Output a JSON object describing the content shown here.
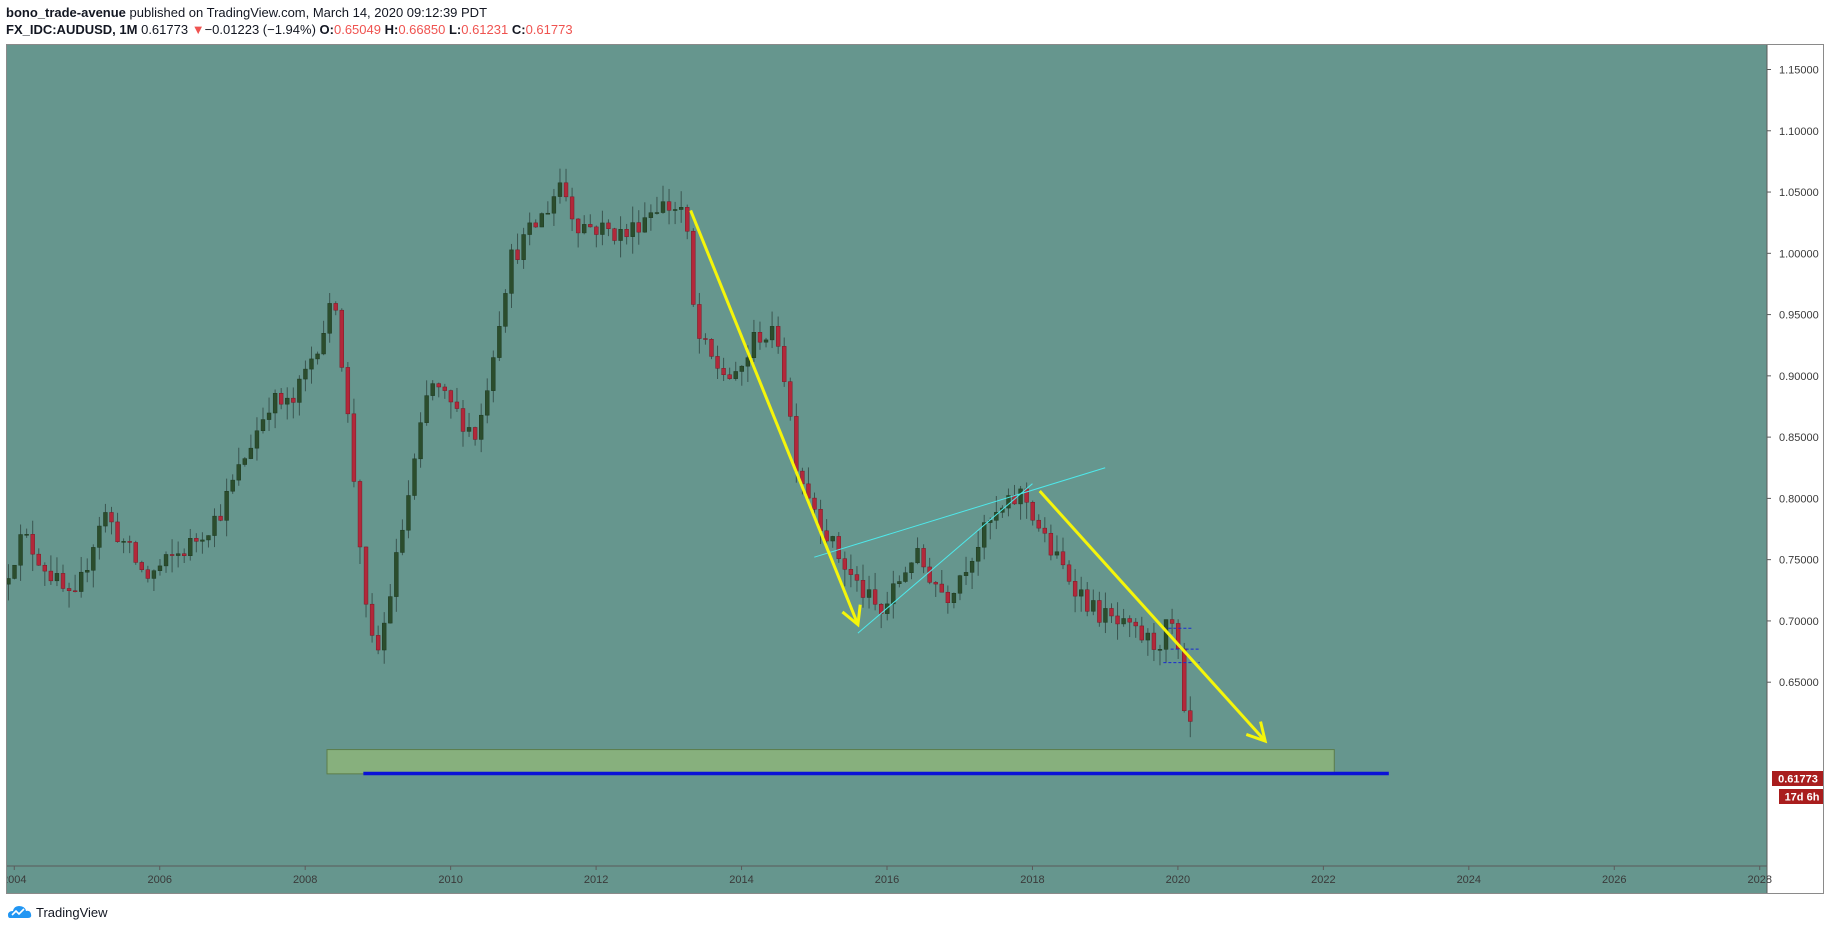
{
  "header": {
    "author": "bono_trade-avenue",
    "published": " published on TradingView.com, March 14, 2020 09:12:39 PDT",
    "symbol": "FX_IDC:AUDUSD, 1M",
    "last": "0.61773",
    "change": "−0.01223 (−1.94%)",
    "change_arrow": "▼",
    "o_label": "O:",
    "o_value": "0.65049",
    "h_label": "H:",
    "h_value": "0.66850",
    "l_label": "L:",
    "l_value": "0.61231",
    "c_label": "C:",
    "c_value": "0.61773"
  },
  "footer": {
    "brand": "TradingView",
    "logo": "tradingview-cloud-icon"
  },
  "colors": {
    "background": "#66968e",
    "up_body": "#2b4d2d",
    "down_body": "#b2283a",
    "wick": "#3a5550",
    "price_label": "#a91d1d",
    "zone": "#8db57a",
    "support_line": "#0a12d6",
    "arrows": "#f5f50a",
    "channel": "#4ee8ea",
    "axis_text": "#3a3a3a"
  },
  "chart_data": {
    "type": "candlestick",
    "symbol": "FX_IDC:AUDUSD",
    "interval": "1M",
    "x_range": [
      2003.9,
      2028.1
    ],
    "y_range": [
      0.5,
      1.17
    ],
    "x_ticks": [
      "2004",
      "2006",
      "2008",
      "2010",
      "2012",
      "2014",
      "2016",
      "2018",
      "2020",
      "2022",
      "2024",
      "2026",
      "2028"
    ],
    "y_ticks": [
      "1.15000",
      "1.10000",
      "1.05000",
      "1.00000",
      "0.95000",
      "0.90000",
      "0.85000",
      "0.80000",
      "0.75000",
      "0.70000",
      "0.65000"
    ],
    "last_price_label": "0.61773",
    "countdown_label": "17d 6h",
    "anchors": [
      [
        2003.92,
        0.73
      ],
      [
        2004.2,
        0.77
      ],
      [
        2004.9,
        0.712
      ],
      [
        2005.3,
        0.79
      ],
      [
        2005.9,
        0.735
      ],
      [
        2006.5,
        0.762
      ],
      [
        2006.9,
        0.787
      ],
      [
        2007.6,
        0.88
      ],
      [
        2007.9,
        0.875
      ],
      [
        2008.5,
        0.963
      ],
      [
        2008.8,
        0.79
      ],
      [
        2008.95,
        0.685
      ],
      [
        2009.1,
        0.675
      ],
      [
        2009.8,
        0.895
      ],
      [
        2010.45,
        0.85
      ],
      [
        2010.9,
        0.995
      ],
      [
        2011.4,
        1.035
      ],
      [
        2011.6,
        1.06
      ],
      [
        2011.8,
        1.025
      ],
      [
        2012.5,
        1.015
      ],
      [
        2012.9,
        1.04
      ],
      [
        2013.3,
        1.036
      ],
      [
        2013.45,
        0.935
      ],
      [
        2013.7,
        0.91
      ],
      [
        2014.0,
        0.895
      ],
      [
        2014.3,
        0.935
      ],
      [
        2014.6,
        0.93
      ],
      [
        2014.85,
        0.825
      ],
      [
        2015.3,
        0.765
      ],
      [
        2015.6,
        0.735
      ],
      [
        2016.0,
        0.705
      ],
      [
        2016.45,
        0.755
      ],
      [
        2016.9,
        0.72
      ],
      [
        2017.5,
        0.78
      ],
      [
        2017.95,
        0.805
      ],
      [
        2018.3,
        0.76
      ],
      [
        2018.9,
        0.71
      ],
      [
        2019.3,
        0.695
      ],
      [
        2019.8,
        0.68
      ],
      [
        2019.98,
        0.7
      ],
      [
        2020.1,
        0.667
      ],
      [
        2020.17,
        0.618
      ]
    ],
    "annotations": {
      "demand_zone": {
        "x": [
          2008.3,
          2022.15
        ],
        "y": [
          0.5752,
          0.595
        ]
      },
      "support_line": {
        "x": [
          2008.8,
          2022.9
        ],
        "y": 0.5755
      },
      "arrows": [
        {
          "from": [
            2013.3,
            1.035
          ],
          "to": [
            2015.6,
            0.697
          ]
        },
        {
          "from": [
            2018.1,
            0.806
          ],
          "to": [
            2021.2,
            0.602
          ]
        }
      ],
      "channel": [
        {
          "from": [
            2015.6,
            0.69
          ],
          "to": [
            2018.0,
            0.812
          ]
        },
        {
          "from": [
            2015.0,
            0.752
          ],
          "to": [
            2019.0,
            0.825
          ]
        }
      ],
      "dashed_levels": [
        {
          "x": [
            2019.8,
            2020.2
          ],
          "y": 0.694
        },
        {
          "x": [
            2019.9,
            2020.3
          ],
          "y": 0.677
        },
        {
          "x": [
            2019.8,
            2020.3
          ],
          "y": 0.666
        }
      ]
    }
  }
}
